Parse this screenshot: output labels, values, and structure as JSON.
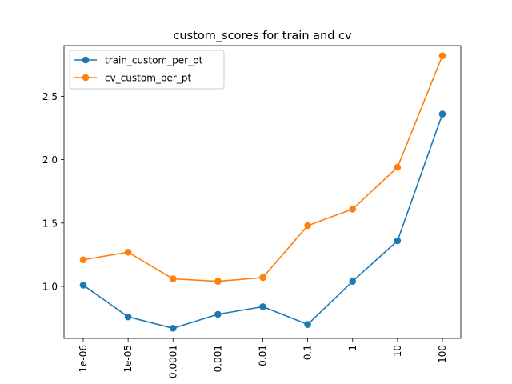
{
  "chart_data": {
    "type": "line",
    "title": "custom_scores for train and cv",
    "xlabel": "",
    "ylabel": "",
    "categories": [
      "1e-06",
      "1e-05",
      "0.0001",
      "0.001",
      "0.01",
      "0.1",
      "1",
      "10",
      "100"
    ],
    "yticks": [
      "1.0",
      "1.5",
      "2.0",
      "2.5"
    ],
    "ylim": [
      0.59,
      2.9
    ],
    "grid": false,
    "legend_position": "upper-left",
    "series": [
      {
        "name": "train_custom_per_pt",
        "color": "#1f77b4",
        "marker": "circle",
        "values": [
          1.01,
          0.76,
          0.67,
          0.78,
          0.84,
          0.7,
          1.04,
          1.36,
          2.36
        ]
      },
      {
        "name": "cv_custom_per_pt",
        "color": "#ff7f0e",
        "marker": "circle",
        "values": [
          1.21,
          1.27,
          1.06,
          1.04,
          1.07,
          1.48,
          1.61,
          1.94,
          2.82
        ]
      }
    ]
  }
}
